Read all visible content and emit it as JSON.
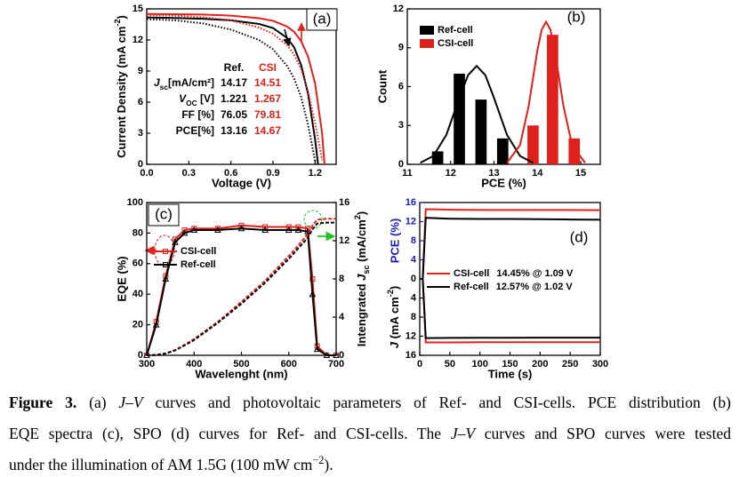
{
  "chart_data": [
    {
      "type": "line",
      "panel_label": "(a)",
      "xlabel": "Voltage (V)",
      "ylabel": [
        {
          "text": "Current Density (mA cm"
        },
        {
          "text": "-2",
          "style": "sup"
        },
        {
          "text": ")"
        }
      ],
      "xlim": [
        0,
        1.35
      ],
      "ylim": [
        0,
        15
      ],
      "xticks": [
        {
          "value": 0,
          "label": "0.0"
        },
        0.3,
        0.6,
        0.9,
        1.2
      ],
      "yticks": [
        0,
        3,
        6,
        9,
        12,
        15
      ],
      "series": [
        {
          "color": "#000000",
          "dash": "solid",
          "x": [
            0,
            0.2,
            0.4,
            0.6,
            0.8,
            0.9,
            1.0,
            1.05,
            1.1,
            1.15,
            1.2,
            1.221
          ],
          "values": [
            14.17,
            14.12,
            14.05,
            13.9,
            13.55,
            13.15,
            12.2,
            11.3,
            9.6,
            6.8,
            2.4,
            0
          ]
        },
        {
          "color": "#e0201b",
          "dash": "solid",
          "x": [
            0,
            0.2,
            0.4,
            0.6,
            0.8,
            0.9,
            1.0,
            1.05,
            1.1,
            1.15,
            1.2,
            1.25,
            1.267
          ],
          "values": [
            14.51,
            14.49,
            14.45,
            14.35,
            14.1,
            13.85,
            13.3,
            12.8,
            11.9,
            10.4,
            7.8,
            3.0,
            0
          ]
        },
        {
          "color": "#000000",
          "dash": "dotted",
          "x": [
            0,
            0.2,
            0.4,
            0.6,
            0.8,
            0.9,
            1.0,
            1.05,
            1.1,
            1.15,
            1.2
          ],
          "values": [
            14.0,
            13.9,
            13.6,
            13.0,
            12.0,
            11.1,
            9.5,
            8.3,
            6.5,
            3.8,
            0.3
          ]
        },
        {
          "color": "#e0201b",
          "dash": "dotted",
          "x": [
            0,
            0.2,
            0.4,
            0.6,
            0.8,
            0.9,
            1.0,
            1.05,
            1.1,
            1.15,
            1.2,
            1.25
          ],
          "values": [
            14.4,
            14.35,
            14.2,
            13.9,
            13.2,
            12.6,
            11.5,
            10.6,
            9.2,
            7.0,
            4.0,
            0.4
          ]
        }
      ],
      "table": {
        "header": [
          "Ref.",
          "CSI"
        ],
        "colors": [
          "#000000",
          "#e0201b"
        ],
        "rows": [
          {
            "label": [
              {
                "text": "J",
                "style": "italic"
              },
              {
                "text": "sc",
                "style": "sub"
              },
              {
                "text": "[mA/cm²]"
              }
            ],
            "values": [
              14.17,
              14.51
            ]
          },
          {
            "label": [
              {
                "text": "V",
                "style": "italic"
              },
              {
                "text": "OC",
                "style": "sub"
              },
              {
                "text": " [V]"
              }
            ],
            "values": [
              1.221,
              1.267
            ]
          },
          {
            "label": [
              {
                "text": "FF [%]"
              }
            ],
            "values": [
              76.05,
              79.81
            ]
          },
          {
            "label": [
              {
                "text": "PCE[%]"
              }
            ],
            "values": [
              13.16,
              14.67
            ]
          }
        ]
      }
    },
    {
      "type": "bar",
      "panel_label": "(b)",
      "xlabel": "PCE (%)",
      "ylabel": "Count",
      "xlim": [
        11,
        15.45
      ],
      "ylim": [
        0,
        12
      ],
      "xticks": [
        11,
        12,
        13,
        14,
        15
      ],
      "yticks": [
        0,
        3,
        6,
        9,
        12
      ],
      "legend": "upper left",
      "series": [
        {
          "name": "Ref-cell",
          "color": "#000000",
          "x": [
            11.7,
            12.2,
            12.7,
            13.2
          ],
          "values": [
            1,
            7,
            5,
            2
          ]
        },
        {
          "name": "CSI-cell",
          "color": "#e0201b",
          "x": [
            13.9,
            14.35,
            14.85
          ],
          "values": [
            3,
            10,
            2
          ]
        }
      ],
      "fits": [
        {
          "color": "#000000",
          "x": [
            11.3,
            11.6,
            11.9,
            12.2,
            12.4,
            12.6,
            12.8,
            13.0,
            13.3,
            13.6,
            13.9
          ],
          "values": [
            0.12,
            0.64,
            2.27,
            5.12,
            6.88,
            7.6,
            6.88,
            5.12,
            2.27,
            0.64,
            0.12
          ]
        },
        {
          "color": "#e0201b",
          "x": [
            13.3,
            13.6,
            13.8,
            14.0,
            14.1,
            14.2,
            14.3,
            14.4,
            14.6,
            14.8,
            15.1
          ],
          "values": [
            0.12,
            1.49,
            4.52,
            8.81,
            10.4,
            11,
            10.4,
            8.81,
            4.52,
            1.49,
            0.12
          ]
        }
      ]
    },
    {
      "type": "line",
      "panel_label": "(c)",
      "xlabel": "Wavelenght (nm)",
      "ylabel": "EQE (%)",
      "y2label": [
        {
          "text": "Intengrated "
        },
        {
          "text": "J",
          "style": "italic"
        },
        {
          "text": "sc",
          "style": "sub"
        },
        {
          "text": " (mA/cm"
        },
        {
          "text": "2",
          "style": "sup"
        },
        {
          "text": ")"
        }
      ],
      "xlim": [
        300,
        700
      ],
      "ylim": [
        0,
        100
      ],
      "y2lim": [
        0,
        16
      ],
      "xticks": [
        300,
        400,
        500,
        600,
        700
      ],
      "yticks": [
        0,
        20,
        40,
        60,
        80,
        100
      ],
      "y2ticks": [
        0,
        4,
        8,
        12,
        16
      ],
      "legend": "center left",
      "x": [
        300,
        320,
        340,
        360,
        380,
        400,
        450,
        500,
        550,
        600,
        620,
        640,
        650,
        660,
        680,
        700
      ],
      "series": [
        {
          "name": "CSI-cell",
          "color": "#e0201b",
          "marker": "square",
          "values": [
            0,
            22,
            52,
            76,
            82,
            83,
            83,
            85,
            84,
            84,
            84,
            83,
            50,
            6,
            0,
            0
          ]
        },
        {
          "name": "Ref-cell",
          "color": "#000000",
          "marker": "triangle",
          "values": [
            0,
            20,
            50,
            74,
            80,
            82,
            82,
            83,
            82,
            82,
            82,
            81,
            40,
            4,
            0,
            0
          ]
        },
        {
          "color": "#e0201b",
          "dash": "dashed",
          "axis": "y2",
          "values": [
            0,
            0.04,
            0.2,
            0.55,
            1.1,
            1.7,
            3.5,
            5.6,
            7.8,
            10.4,
            11.5,
            12.7,
            13.6,
            14.2,
            14.3,
            14.3
          ]
        },
        {
          "color": "#000000",
          "dash": "dashed",
          "axis": "y2",
          "values": [
            0,
            0.04,
            0.19,
            0.52,
            1.05,
            1.6,
            3.4,
            5.4,
            7.6,
            10.1,
            11.2,
            12.3,
            13.2,
            13.8,
            13.9,
            13.9
          ]
        }
      ]
    },
    {
      "type": "line",
      "panel_label": "(d)",
      "xlabel": "Time (s)",
      "ylabel": "PCE (%)",
      "ylabel_color": "#1b1bb0",
      "y2label": [
        {
          "text": "J",
          "style": "italic"
        },
        {
          "text": " (mA cm"
        },
        {
          "text": "-2",
          "style": "sup"
        },
        {
          "text": ")"
        }
      ],
      "split_axes": true,
      "y2_inverted": true,
      "xlim": [
        0,
        300
      ],
      "ylim": [
        0,
        16
      ],
      "y2lim": [
        0,
        16
      ],
      "xticks": [
        0,
        50,
        100,
        150,
        200,
        250,
        300
      ],
      "yticks": [
        0,
        4,
        8,
        12,
        16
      ],
      "y2ticks": [
        4,
        8,
        12,
        16
      ],
      "legend": "center left",
      "x": [
        0,
        5,
        10,
        50,
        100,
        150,
        200,
        250,
        300
      ],
      "series": [
        {
          "name": "CSI-cell",
          "legend_value": "14.45% @ 1.09 V",
          "color": "#e0201b",
          "values": [
            0,
            0,
            14.6,
            14.5,
            14.45,
            14.45,
            14.45,
            14.45,
            14.4
          ]
        },
        {
          "name": "Ref-cell",
          "legend_value": "12.57% @ 1.02 V",
          "color": "#000000",
          "values": [
            0,
            0,
            12.8,
            12.6,
            12.57,
            12.55,
            12.5,
            12.45,
            12.4
          ]
        },
        {
          "color": "#e0201b",
          "axis": "y2",
          "values": [
            0,
            0,
            13.3,
            13.3,
            13.26,
            13.26,
            13.25,
            13.25,
            13.25
          ]
        },
        {
          "color": "#000000",
          "axis": "y2",
          "values": [
            0,
            0,
            12.4,
            12.35,
            12.32,
            12.32,
            12.3,
            12.3,
            12.3
          ]
        }
      ]
    }
  ],
  "caption": {
    "lines": [
      [
        {
          "text": "Figure 3.",
          "style": "bold"
        },
        {
          "text": " (a) "
        },
        {
          "text": "J–V",
          "style": "italic"
        },
        {
          "text": " curves and photovoltaic parameters of Ref- and CSI-cells. PCE distribution (b)"
        }
      ],
      [
        {
          "text": "EQE spectra (c), SPO (d) curves for Ref- and CSI-cells. The "
        },
        {
          "text": "J–V",
          "style": "italic"
        },
        {
          "text": " curves and SPO curves were tested"
        }
      ],
      [
        {
          "text": "under the illumination of AM 1.5G (100 mW cm"
        },
        {
          "text": "−2",
          "style": "sup"
        },
        {
          "text": ")."
        }
      ]
    ]
  }
}
